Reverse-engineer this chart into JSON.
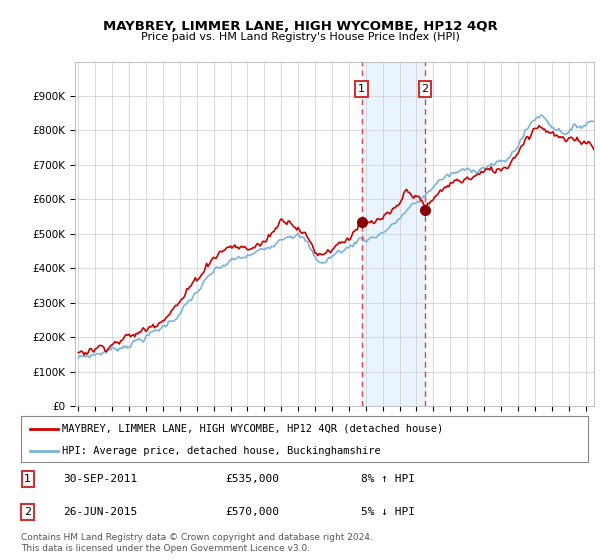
{
  "title": "MAYBREY, LIMMER LANE, HIGH WYCOMBE, HP12 4QR",
  "subtitle": "Price paid vs. HM Land Registry's House Price Index (HPI)",
  "legend_line1": "MAYBREY, LIMMER LANE, HIGH WYCOMBE, HP12 4QR (detached house)",
  "legend_line2": "HPI: Average price, detached house, Buckinghamshire",
  "transaction1_date": "30-SEP-2011",
  "transaction1_price": "£535,000",
  "transaction1_hpi": "8% ↑ HPI",
  "transaction1_year": 2011.75,
  "transaction1_value": 535000,
  "transaction2_date": "26-JUN-2015",
  "transaction2_price": "£570,000",
  "transaction2_hpi": "5% ↓ HPI",
  "transaction2_year": 2015.5,
  "transaction2_value": 570000,
  "footer": "Contains HM Land Registry data © Crown copyright and database right 2024.\nThis data is licensed under the Open Government Licence v3.0.",
  "hpi_color": "#7ab4d8",
  "price_color": "#cc0000",
  "marker_color": "#880000",
  "shade_color": "#ddeeff",
  "vline_color": "#dd4444",
  "ylim": [
    0,
    1000000
  ],
  "xlim_start": 1994.8,
  "xlim_end": 2025.5,
  "bg_color": "#ffffff",
  "grid_color": "#cccccc"
}
